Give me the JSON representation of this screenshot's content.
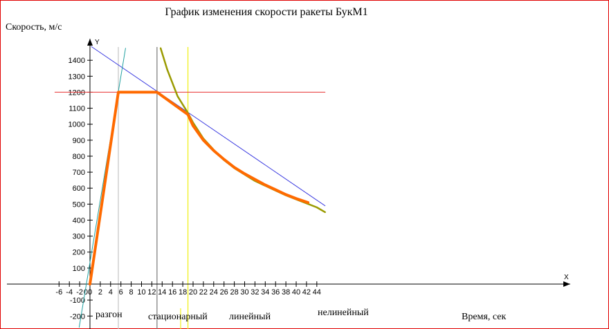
{
  "chart_data": {
    "type": "line",
    "title": "График изменения скорости ракеты БукМ1",
    "ylabel": "Скорость, м/с",
    "xlabel": "Время, сек",
    "x_axis_name": "X",
    "y_axis_name": "Y",
    "xlim": [
      -7,
      46
    ],
    "ylim": [
      -220,
      1500
    ],
    "x_ticks": [
      -6,
      -4,
      -2,
      0,
      2,
      4,
      6,
      8,
      10,
      12,
      14,
      16,
      18,
      20,
      22,
      24,
      26,
      28,
      30,
      32,
      34,
      36,
      38,
      40,
      42,
      44
    ],
    "y_ticks": [
      -200,
      -100,
      100,
      200,
      300,
      400,
      500,
      600,
      700,
      800,
      900,
      1000,
      1100,
      1200,
      1300,
      1400
    ],
    "grid": false,
    "phases": [
      "разгон",
      "стационарный",
      "линейный",
      "нелинейный"
    ],
    "series": [
      {
        "role": "velocity",
        "color": "#ff6a00",
        "x": [
          0,
          5.5,
          13,
          19,
          20,
          22,
          24,
          26,
          28,
          30,
          32,
          34,
          36,
          38,
          40,
          42.3
        ],
        "y": [
          0,
          1200,
          1200,
          1060,
          990,
          900,
          835,
          780,
          730,
          690,
          655,
          620,
          590,
          560,
          535,
          510
        ]
      },
      {
        "role": "acceleration-line",
        "color": "#20a0a0",
        "x": [
          -2.1,
          6.9
        ],
        "y": [
          -270,
          1475
        ]
      },
      {
        "role": "constant-speed-line",
        "color": "#e83030",
        "x": [
          -6.8,
          45.6
        ],
        "y": [
          1200,
          1200
        ]
      },
      {
        "role": "linear-trend-line",
        "color": "#3a3ae0",
        "x": [
          0.3,
          45.6
        ],
        "y": [
          1485,
          490
        ]
      },
      {
        "role": "nonlinear-fit-curve",
        "color": "#9a9a00",
        "x": [
          13.7,
          15,
          17,
          19,
          20,
          22,
          24,
          26,
          28,
          30,
          32,
          34,
          36,
          38,
          40,
          42,
          44,
          45.6
        ],
        "y": [
          1475,
          1340,
          1175,
          1070,
          1010,
          910,
          840,
          775,
          725,
          685,
          645,
          615,
          585,
          555,
          530,
          505,
          480,
          450
        ]
      }
    ],
    "vertical_markers": [
      {
        "x": 5.5,
        "color": "#c8c8c8"
      },
      {
        "x": 13,
        "color": "#808080"
      },
      {
        "x": 19,
        "color": "#f0f020"
      }
    ]
  }
}
